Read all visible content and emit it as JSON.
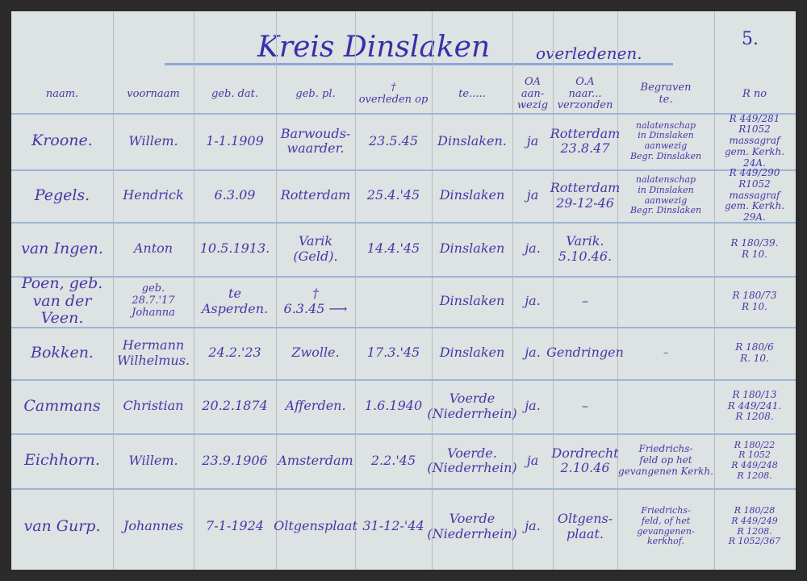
{
  "header": {
    "title": "Kreis Dinslaken",
    "subtitle": "overledenen.",
    "page": "5."
  },
  "columns": [
    "naam.",
    "voornaam",
    "geb. dat.",
    "geb. pl.",
    "†\noverleden op",
    "te.....",
    "OA\naan-\nwezig",
    "O.A\nnaar...\nverzonden",
    "Begraven\nte.",
    "R no"
  ],
  "rows": [
    [
      "Kroone.",
      "Willem.",
      "1-1.1909",
      "Barwouds-\nwaarder.",
      "23.5.45",
      "Dinslaken.",
      "ja",
      "Rotterdam\n23.8.47",
      "nalatenschap\nin Dinslaken\naanwezig\nBegr. Dinslaken",
      "R 449/281\nR1052 massagraf\ngem. Kerkh. 24A."
    ],
    [
      "Pegels.",
      "Hendrick",
      "6.3.09",
      "Rotterdam",
      "25.4.'45",
      "Dinslaken",
      "ja",
      "Rotterdam\n29-12-46",
      "nalatenschap\nin Dinslaken\naanwezig\nBegr. Dinslaken",
      "R 449/290\nR1052 massagraf\ngem. Kerkh. 29A."
    ],
    [
      "van Ingen.",
      "Anton",
      "10.5.1913.",
      "Varik\n(Geld).",
      "14.4.'45",
      "Dinslaken",
      "ja.",
      "Varik.\n5.10.46.",
      null,
      "R 180/39.\nR 10."
    ],
    [
      "Poen, geb.\nvan der Veen.",
      "geb.\n28.7.'17\nJohanna",
      "te\nAsperden.",
      "†\n6.3.45 ⟶",
      null,
      "Dinslaken",
      "ja.",
      "–",
      null,
      "R 180/73\nR 10."
    ],
    [
      "Bokken.",
      "Hermann\nWilhelmus.",
      "24.2.'23",
      "Zwolle.",
      "17.3.'45",
      "Dinslaken",
      "ja.",
      "Gendringen",
      "–",
      "R 180/6\nR. 10."
    ],
    [
      "Cammans",
      "Christian",
      "20.2.1874",
      "Afferden.",
      "1.6.1940",
      "Voerde\n(Niederrhein)",
      "ja.",
      "–",
      null,
      "R 180/13\nR 449/241.\nR 1208."
    ],
    [
      "Eichhorn.",
      "Willem.",
      "23.9.1906",
      "Amsterdam",
      "2.2.'45",
      "Voerde.\n(Niederrhein)",
      "ja",
      "Dordrecht\n2.10.46",
      "Friedrichs-\nfeld op het\ngevangenen Kerkh.",
      "R 180/22\nR 1052\nR 449/248\nR 1208."
    ],
    [
      "van Gurp.",
      "Johannes",
      "7-1-1924",
      "Oltgensplaat",
      "31-12-'44",
      "Voerde\n(Niederrhein)",
      "ja.",
      "Oltgens-\nplaat.",
      "Friedrichs-\nfeld, of het\ngevangenen-\nkerkhof.",
      "R 180/28\nR 449/249\nR 1208.\nR 1052/367"
    ]
  ]
}
